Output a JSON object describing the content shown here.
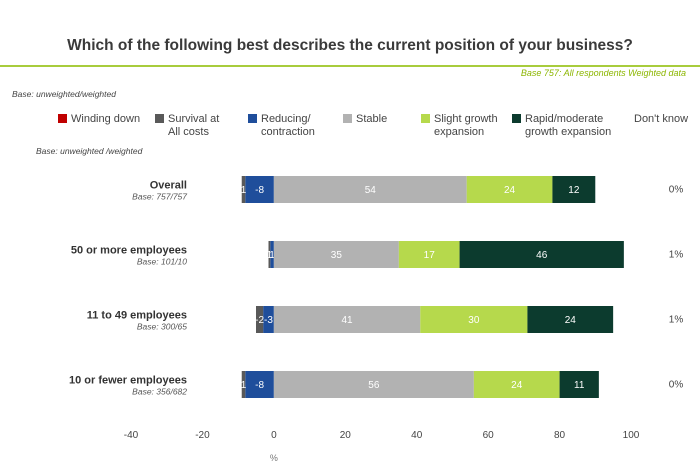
{
  "header": {
    "title": "Which of the following best describes the current position of your business?",
    "base_note": "Base 757: All respondents Weighted data",
    "base_label_top": "Base: unweighted/weighted",
    "base_label_left": "Base: unweighted /weighted",
    "accent_color": "#a8cc3c"
  },
  "chart_data": {
    "type": "bar",
    "orientation": "horizontal",
    "stacked": true,
    "xlabel": "%",
    "xlim": [
      -40,
      100
    ],
    "xticks": [
      -40,
      -20,
      0,
      20,
      40,
      60,
      80,
      100
    ],
    "grid": false,
    "legend_position": "top",
    "categories": [
      {
        "name": "Overall",
        "base": "Base: 757/757"
      },
      {
        "name": "50 or more employees",
        "base": "Base: 101/10"
      },
      {
        "name": "11 to 49 employees",
        "base": "Base: 300/65"
      },
      {
        "name": "10 or fewer employees",
        "base": "Base: 356/682"
      }
    ],
    "negative_series": [
      {
        "name": "Survival at All costs",
        "color": "#595959",
        "values": [
          -1,
          -0.5,
          -2,
          -1
        ],
        "labels": [
          "1",
          "1",
          "-2",
          "1"
        ]
      },
      {
        "name": "Reducing/ contraction",
        "color": "#1f4e9b",
        "values": [
          -8,
          -1,
          -3,
          -8
        ],
        "labels": [
          "-8",
          "1",
          "-3",
          "-8"
        ]
      }
    ],
    "positive_series": [
      {
        "name": "Stable",
        "color": "#b2b2b2",
        "values": [
          54,
          35,
          41,
          56
        ]
      },
      {
        "name": "Slight growth expansion",
        "color": "#b6d94c",
        "values": [
          24,
          17,
          30,
          24
        ]
      },
      {
        "name": "Rapid/moderate growth expansion",
        "color": "#0c3b2e",
        "values": [
          12,
          46,
          24,
          11
        ]
      }
    ],
    "dont_know": {
      "name": "Don't know",
      "labels": [
        "0%",
        "1%",
        "1%",
        "0%"
      ]
    },
    "legend": [
      {
        "name": "Winding down",
        "color": "#c00000"
      },
      {
        "name": "Survival at All costs",
        "color": "#595959"
      },
      {
        "name": "Reducing/ contraction",
        "color": "#1f4e9b"
      },
      {
        "name": "Stable",
        "color": "#b2b2b2"
      },
      {
        "name": "Slight growth expansion",
        "color": "#b6d94c"
      },
      {
        "name": "Rapid/moderate growth expansion",
        "color": "#0c3b2e"
      },
      {
        "name": "Don't know",
        "color": ""
      }
    ]
  }
}
